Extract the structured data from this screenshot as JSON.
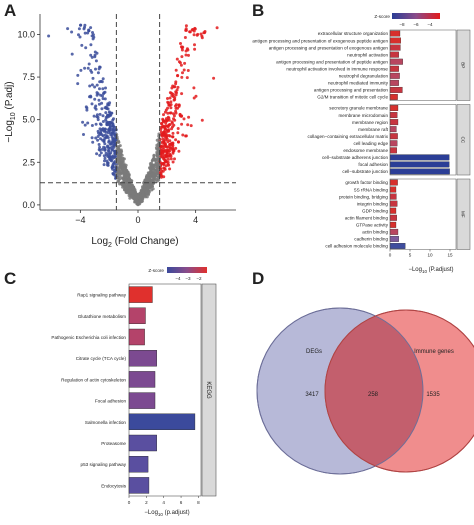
{
  "panels": {
    "A": {
      "letter": "A"
    },
    "B": {
      "letter": "B"
    },
    "C": {
      "letter": "C"
    },
    "D": {
      "letter": "D"
    }
  },
  "chart_data": [
    {
      "panel": "A",
      "type": "scatter",
      "xlabel_base": "Log",
      "xlabel_sub": "2",
      "xlabel_rest": " (Fold Change)",
      "ylabel_base": "−Log",
      "ylabel_sub": "10",
      "ylabel_rest": " (P.adj)",
      "xticks": [
        "−4",
        "0",
        "4"
      ],
      "xtick_values": [
        -4,
        0,
        4
      ],
      "yticks": [
        "0.0",
        "2.5",
        "5.0",
        "7.5",
        "10.0"
      ],
      "ytick_values": [
        0,
        2.5,
        5,
        7.5,
        10
      ],
      "xlim": [
        -6.8,
        6.8
      ],
      "ylim": [
        -0.3,
        11.2
      ],
      "thresholds": {
        "fc": [
          -1.5,
          1.5
        ],
        "padj": 1.3
      },
      "colors": {
        "down": "#3b4d9b",
        "up": "#e31a1c",
        "ns": "#7a7a7a"
      }
    },
    {
      "panel": "B",
      "type": "bar",
      "orientation": "horizontal",
      "legend_title": "Z-score",
      "legend_ticks": [
        "−8",
        "−6",
        "−4"
      ],
      "xlabel_base": "−Log",
      "xlabel_sub": "10",
      "xlabel_rest": " (P.adjust)",
      "xticks": [
        "0",
        "5",
        "10",
        "15"
      ],
      "xtick_values": [
        0,
        5,
        10,
        15
      ],
      "xlim": [
        0,
        16.5
      ],
      "groups": [
        {
          "name": "BP",
          "terms": [
            "extracellular structure organization",
            "antigen processing and presentation of exogenous peptide antigen",
            "antigen processing and presentation of exogenous antigen",
            "neutrophil activation",
            "antigen processing and presentation of peptide antigen",
            "neutrophil activation involved in immune response",
            "neutrophil degranulation",
            "neutrophil mediated immunity",
            "antigen processing and presentation",
            "G2/M transition of mitotic cell cycle"
          ],
          "values": [
            2.5,
            2.7,
            2.6,
            2.2,
            3.2,
            2.2,
            2.4,
            2.2,
            3.1,
            1.9
          ],
          "colors": [
            "#d7302d",
            "#d7302d",
            "#c73540",
            "#c73540",
            "#b84660",
            "#c73540",
            "#b84660",
            "#b84660",
            "#c73540",
            "#d7302d"
          ]
        },
        {
          "name": "CC",
          "terms": [
            "secretory granule membrane",
            "membrane microdomain",
            "membrane region",
            "membrane raft",
            "collagen−containing extracellular matrix",
            "cell leading edge",
            "endosome membrane",
            "cell−substrate adherens junction",
            "focal adhesion",
            "cell−substrate junction"
          ],
          "values": [
            2.0,
            1.8,
            2.0,
            1.6,
            1.9,
            1.8,
            1.7,
            14.8,
            14.8,
            14.9
          ],
          "colors": [
            "#d7302d",
            "#c73540",
            "#c73540",
            "#b84660",
            "#c73540",
            "#b84660",
            "#c73540",
            "#2b3e96",
            "#2b3e96",
            "#2b3e96"
          ]
        },
        {
          "name": "MF",
          "terms": [
            "growth factor binding",
            "5S rRNA binding",
            "protein binding, bridging",
            "integrin binding",
            "GDP binding",
            "actin filament binding",
            "GTPase activity",
            "actin binding",
            "cadherin binding",
            "cell adhesion molecule binding"
          ],
          "values": [
            1.9,
            1.5,
            1.6,
            1.8,
            1.5,
            1.7,
            1.5,
            2.0,
            2.2,
            3.8
          ],
          "colors": [
            "#d7302d",
            "#d7302d",
            "#c73540",
            "#c73540",
            "#d7302d",
            "#c73540",
            "#d7302d",
            "#b84660",
            "#7d5a9c",
            "#3e4d9e"
          ]
        }
      ]
    },
    {
      "panel": "C",
      "type": "bar",
      "orientation": "horizontal",
      "legend_title": "Z-score",
      "legend_ticks": [
        "−4",
        "−3",
        "−2"
      ],
      "strip_label": "KEGG",
      "xlabel_base": "−Log",
      "xlabel_sub": "10",
      "xlabel_rest": " (p.adjust)",
      "xticks": [
        "0",
        "2",
        "4",
        "6",
        "8"
      ],
      "xtick_values": [
        0,
        2,
        4,
        6,
        8
      ],
      "xlim": [
        0,
        8.3
      ],
      "categories": [
        "Rap1 signaling pathway",
        "Glutathione metabolism",
        "Pathogenic Escherichia coli infection",
        "Citrate cycle (TCA cycle)",
        "Regulation of actin cytoskeleton",
        "Focal adhesion",
        "Salmonella infection",
        "Proteasome",
        "p53 signaling pathway",
        "Endocytosis"
      ],
      "values": [
        2.7,
        1.9,
        1.8,
        3.2,
        3.0,
        3.0,
        7.6,
        3.2,
        2.2,
        2.3
      ],
      "colors": [
        "#e0302d",
        "#b4436a",
        "#b4436a",
        "#7c4a91",
        "#7c4a91",
        "#7c4a91",
        "#3b4a9c",
        "#5a4fa0",
        "#5a4fa0",
        "#5a4fa0"
      ]
    },
    {
      "panel": "D",
      "type": "venn",
      "sets": [
        {
          "name": "DEGs",
          "only": 3417,
          "color": "#b7b9d8"
        },
        {
          "name": "Immune genes",
          "only": 1535,
          "color": "#f08d8d"
        }
      ],
      "overlap": 258,
      "overlap_color": "#c35f6d"
    }
  ]
}
